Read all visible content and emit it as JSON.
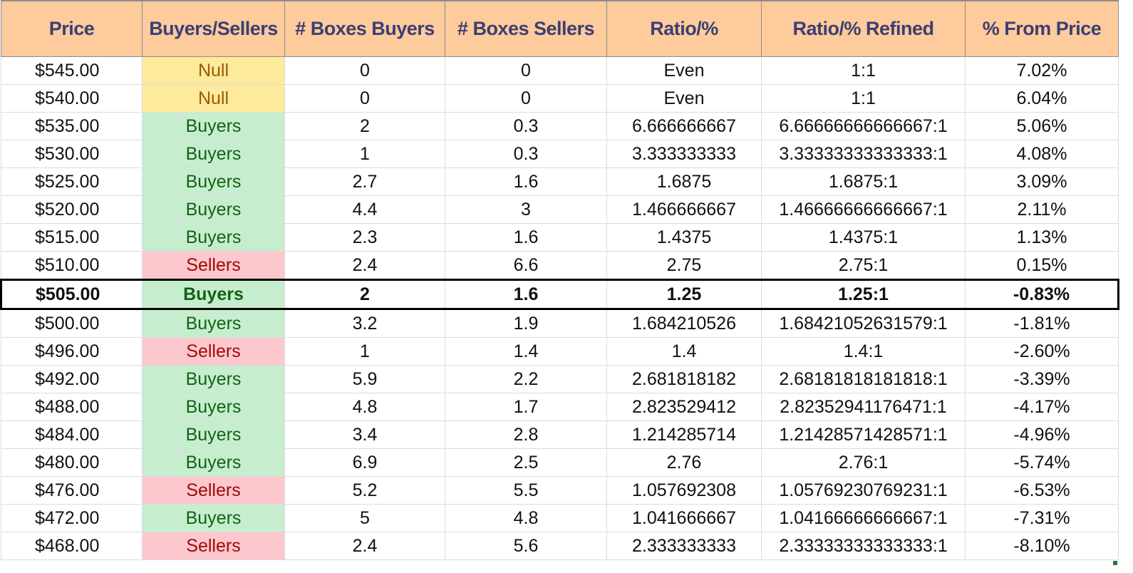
{
  "headers": [
    "Price",
    "Buyers/Sellers",
    "# Boxes Buyers",
    "# Boxes Sellers",
    "Ratio/%",
    "Ratio/% Refined",
    "% From Price"
  ],
  "current_row": 8,
  "rows": [
    {
      "price": "$545.00",
      "side": "Null",
      "buyers": "0",
      "sellers": "0",
      "ratio": "Even",
      "refined": "1:1",
      "from_price": "7.02%"
    },
    {
      "price": "$540.00",
      "side": "Null",
      "buyers": "0",
      "sellers": "0",
      "ratio": "Even",
      "refined": "1:1",
      "from_price": "6.04%"
    },
    {
      "price": "$535.00",
      "side": "Buyers",
      "buyers": "2",
      "sellers": "0.3",
      "ratio": "6.666666667",
      "refined": "6.66666666666667:1",
      "from_price": "5.06%"
    },
    {
      "price": "$530.00",
      "side": "Buyers",
      "buyers": "1",
      "sellers": "0.3",
      "ratio": "3.333333333",
      "refined": "3.33333333333333:1",
      "from_price": "4.08%"
    },
    {
      "price": "$525.00",
      "side": "Buyers",
      "buyers": "2.7",
      "sellers": "1.6",
      "ratio": "1.6875",
      "refined": "1.6875:1",
      "from_price": "3.09%"
    },
    {
      "price": "$520.00",
      "side": "Buyers",
      "buyers": "4.4",
      "sellers": "3",
      "ratio": "1.466666667",
      "refined": "1.46666666666667:1",
      "from_price": "2.11%"
    },
    {
      "price": "$515.00",
      "side": "Buyers",
      "buyers": "2.3",
      "sellers": "1.6",
      "ratio": "1.4375",
      "refined": "1.4375:1",
      "from_price": "1.13%"
    },
    {
      "price": "$510.00",
      "side": "Sellers",
      "buyers": "2.4",
      "sellers": "6.6",
      "ratio": "2.75",
      "refined": "2.75:1",
      "from_price": "0.15%"
    },
    {
      "price": "$505.00",
      "side": "Buyers",
      "buyers": "2",
      "sellers": "1.6",
      "ratio": "1.25",
      "refined": "1.25:1",
      "from_price": "-0.83%"
    },
    {
      "price": "$500.00",
      "side": "Buyers",
      "buyers": "3.2",
      "sellers": "1.9",
      "ratio": "1.684210526",
      "refined": "1.68421052631579:1",
      "from_price": "-1.81%"
    },
    {
      "price": "$496.00",
      "side": "Sellers",
      "buyers": "1",
      "sellers": "1.4",
      "ratio": "1.4",
      "refined": "1.4:1",
      "from_price": "-2.60%"
    },
    {
      "price": "$492.00",
      "side": "Buyers",
      "buyers": "5.9",
      "sellers": "2.2",
      "ratio": "2.681818182",
      "refined": "2.68181818181818:1",
      "from_price": "-3.39%"
    },
    {
      "price": "$488.00",
      "side": "Buyers",
      "buyers": "4.8",
      "sellers": "1.7",
      "ratio": "2.823529412",
      "refined": "2.82352941176471:1",
      "from_price": "-4.17%"
    },
    {
      "price": "$484.00",
      "side": "Buyers",
      "buyers": "3.4",
      "sellers": "2.8",
      "ratio": "1.214285714",
      "refined": "1.21428571428571:1",
      "from_price": "-4.96%"
    },
    {
      "price": "$480.00",
      "side": "Buyers",
      "buyers": "6.9",
      "sellers": "2.5",
      "ratio": "2.76",
      "refined": "2.76:1",
      "from_price": "-5.74%"
    },
    {
      "price": "$476.00",
      "side": "Sellers",
      "buyers": "5.2",
      "sellers": "5.5",
      "ratio": "1.057692308",
      "refined": "1.05769230769231:1",
      "from_price": "-6.53%"
    },
    {
      "price": "$472.00",
      "side": "Buyers",
      "buyers": "5",
      "sellers": "4.8",
      "ratio": "1.041666667",
      "refined": "1.04166666666667:1",
      "from_price": "-7.31%"
    },
    {
      "price": "$468.00",
      "side": "Sellers",
      "buyers": "2.4",
      "sellers": "5.6",
      "ratio": "2.333333333",
      "refined": "2.33333333333333:1",
      "from_price": "-8.10%"
    }
  ]
}
